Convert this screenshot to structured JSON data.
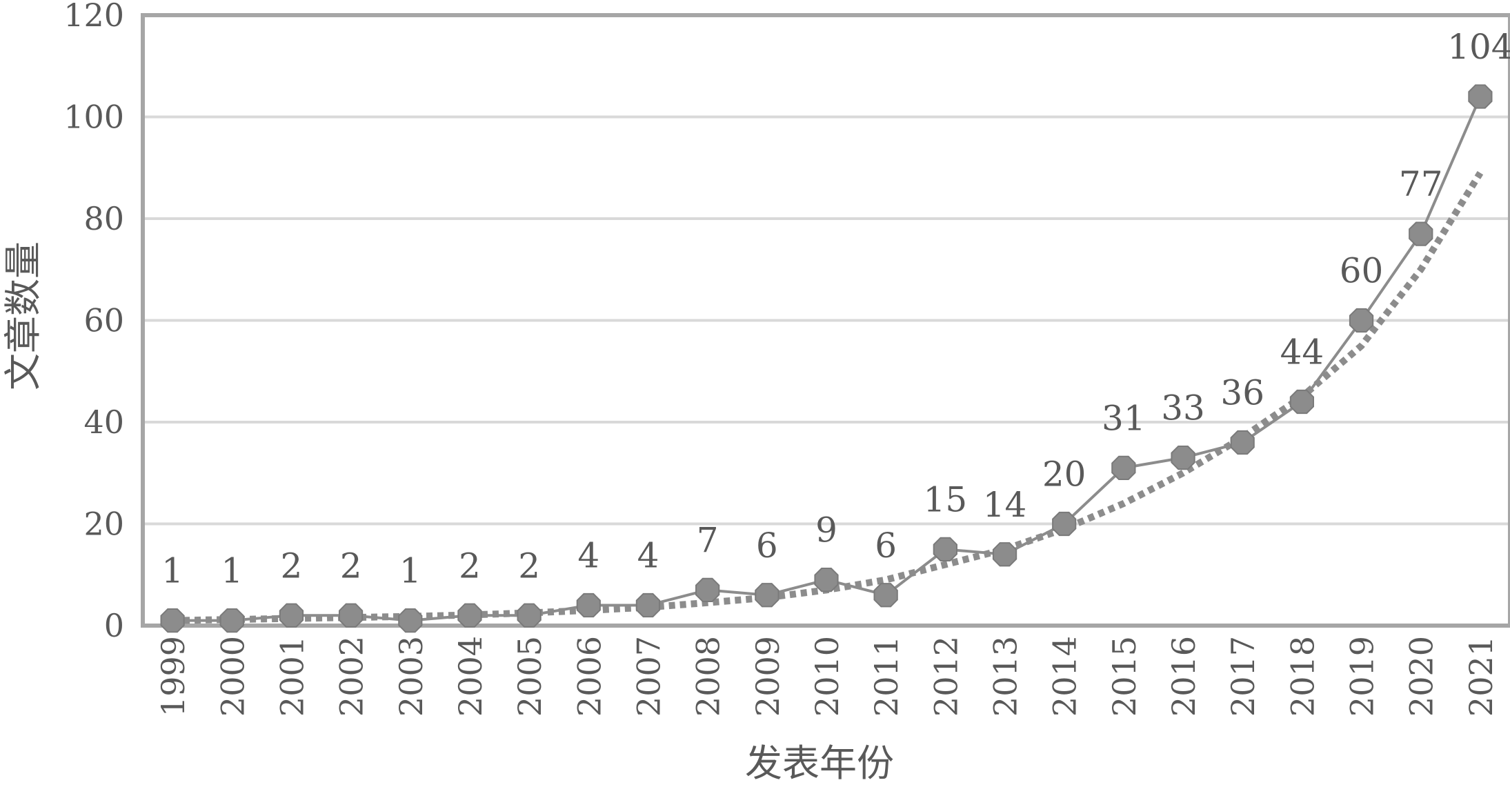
{
  "chart_data": {
    "type": "line",
    "title": "",
    "xlabel": "发表年份",
    "ylabel": "文章数量",
    "ylim": [
      0,
      120
    ],
    "yticks": [
      0,
      20,
      40,
      60,
      80,
      100,
      120
    ],
    "grid": true,
    "legend": "none",
    "categories": [
      "1999",
      "2000",
      "2001",
      "2002",
      "2003",
      "2004",
      "2005",
      "2006",
      "2007",
      "2008",
      "2009",
      "2010",
      "2011",
      "2012",
      "2013",
      "2014",
      "2015",
      "2016",
      "2017",
      "2018",
      "2019",
      "2020",
      "2021"
    ],
    "series": [
      {
        "style": "solid-line-with-markers",
        "color": "#8c8c8c",
        "values": [
          1,
          1,
          2,
          2,
          1,
          2,
          2,
          4,
          4,
          7,
          6,
          9,
          6,
          15,
          14,
          20,
          31,
          33,
          36,
          44,
          60,
          77,
          104
        ],
        "labels": [
          "1",
          "1",
          "2",
          "2",
          "1",
          "2",
          "2",
          "4",
          "4",
          "7",
          "6",
          "9",
          "6",
          "15",
          "14",
          "20",
          "31",
          "33",
          "36",
          "44",
          "60",
          "77",
          "104"
        ]
      },
      {
        "style": "dotted-trendline",
        "color": "#8c8c8c",
        "values": [
          1,
          1.2,
          1.4,
          1.6,
          1.8,
          2.1,
          2.5,
          3,
          3.6,
          4.5,
          5.5,
          7,
          9,
          12,
          15,
          19,
          24,
          30,
          37,
          45,
          55,
          70,
          89
        ]
      }
    ]
  }
}
